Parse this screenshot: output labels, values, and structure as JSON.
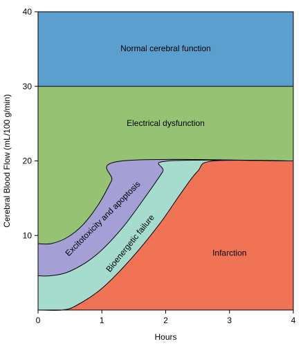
{
  "chart_data": {
    "type": "area",
    "xlabel": "Hours",
    "ylabel": "Cerebral Blood Flow (mL/100 g/min)",
    "xlim": [
      0,
      4
    ],
    "ylim": [
      0,
      40
    ],
    "x_ticks": [
      "0",
      "1",
      "2",
      "3",
      "4"
    ],
    "y_ticks": [
      "10",
      "20",
      "30",
      "40"
    ],
    "grid": false,
    "boundaries": [
      {
        "id": "normal_lower",
        "points": [
          [
            0,
            30
          ],
          [
            4,
            30
          ]
        ]
      },
      {
        "id": "dysfunction_lower",
        "points": [
          [
            0,
            8.9
          ],
          [
            0.2,
            8.9
          ],
          [
            0.45,
            9.7
          ],
          [
            0.7,
            11.4
          ],
          [
            0.95,
            14.2
          ],
          [
            1.15,
            17.3
          ],
          [
            1.32,
            20
          ],
          [
            4,
            20
          ]
        ]
      },
      {
        "id": "excitotoxicity_lower",
        "points": [
          [
            0,
            4.6
          ],
          [
            0.2,
            4.6
          ],
          [
            0.5,
            5.2
          ],
          [
            0.9,
            7.3
          ],
          [
            1.3,
            10.8
          ],
          [
            1.65,
            14.8
          ],
          [
            1.95,
            18.5
          ],
          [
            2.05,
            20
          ],
          [
            4,
            20
          ]
        ]
      },
      {
        "id": "bioenergetic_lower",
        "points": [
          [
            0,
            0
          ],
          [
            0.38,
            0
          ],
          [
            0.6,
            0.6
          ],
          [
            1.0,
            2.9
          ],
          [
            1.45,
            6.8
          ],
          [
            1.9,
            11.5
          ],
          [
            2.25,
            15.8
          ],
          [
            2.5,
            18.6
          ],
          [
            2.75,
            20
          ],
          [
            4,
            20
          ]
        ]
      }
    ],
    "regions": [
      {
        "name": "Normal cerebral function",
        "color": "#5a9fcd",
        "upper": "top",
        "lower": "normal_lower"
      },
      {
        "name": "Electrical dysfunction",
        "color": "#95c273",
        "upper": "normal_lower",
        "lower": "dysfunction_lower"
      },
      {
        "name": "Excitotoxicity and apoptosis",
        "color": "#a4a0d5",
        "upper": "dysfunction_lower",
        "lower": "excitotoxicity_lower"
      },
      {
        "name": "Bioenergetic failure",
        "color": "#a6dcce",
        "upper": "excitotoxicity_lower",
        "lower": "bioenergetic_lower"
      },
      {
        "name": "Infarction",
        "color": "#f07356",
        "upper": "bioenergetic_lower",
        "lower": "bottom"
      }
    ]
  }
}
